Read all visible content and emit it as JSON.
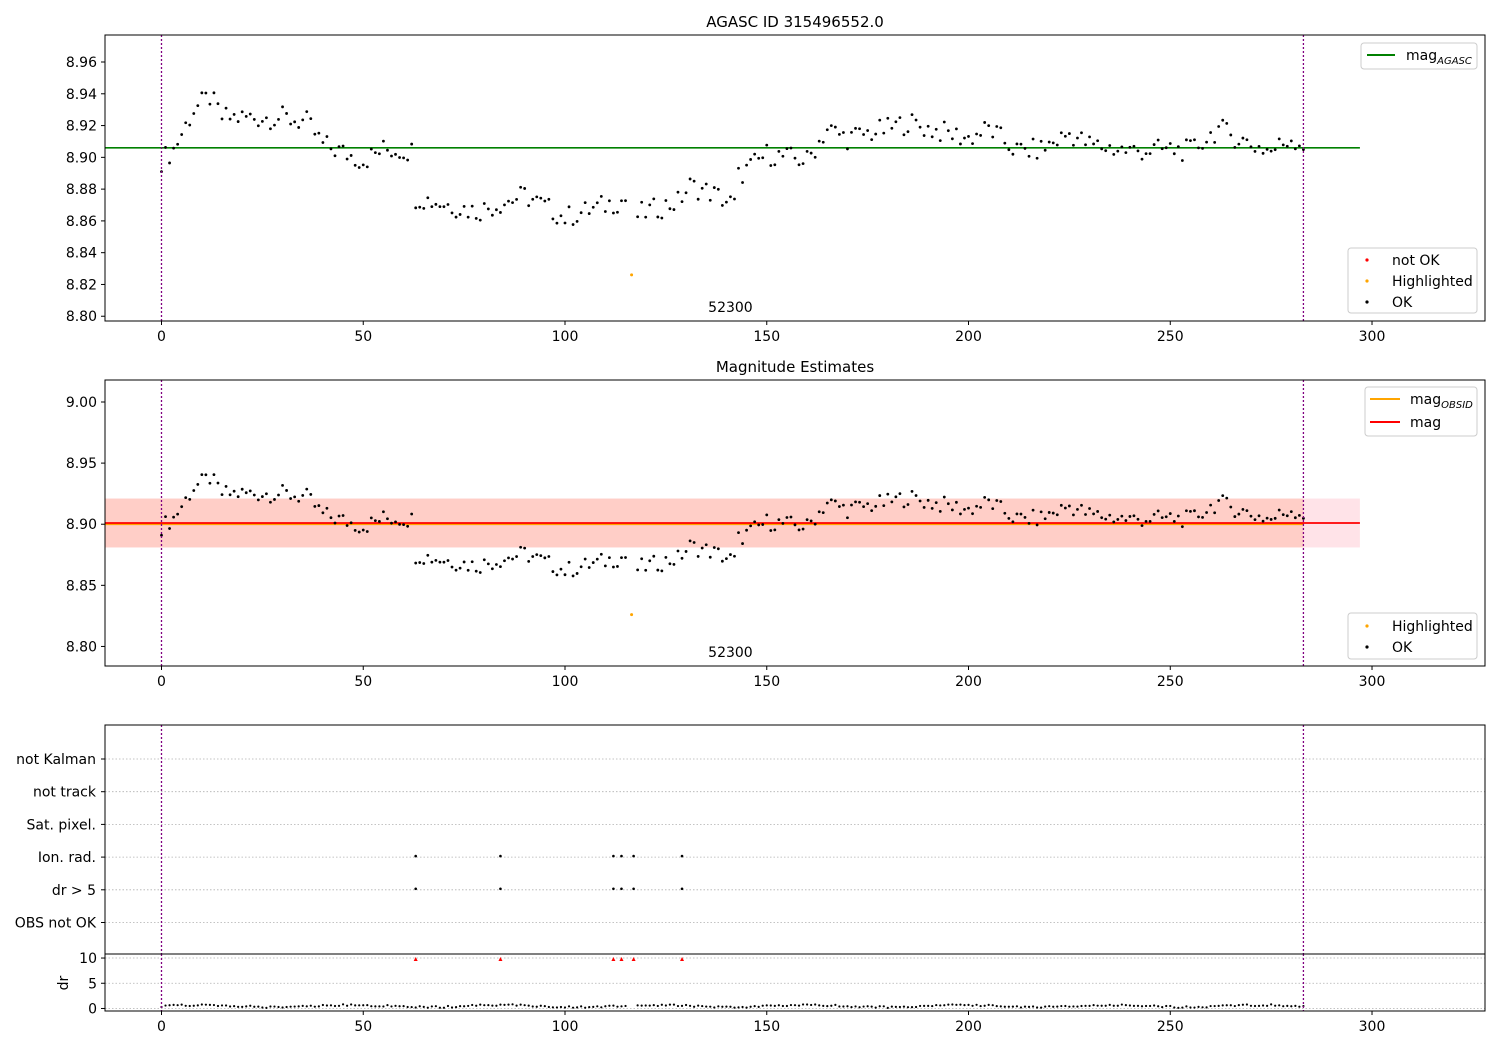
{
  "colors": {
    "ok": "#000000",
    "not_ok": "#ff0000",
    "highlighted": "#ffa500",
    "mag_agasc": "#008000",
    "mag_obsid": "#ffa500",
    "mag": "#ff0000",
    "band_fill": "#ffc0cb",
    "band_inner_fill": "#ffa07a",
    "vline": "#800080",
    "grid": "#b0b0b0"
  },
  "chart_data": [
    {
      "type": "scatter",
      "title": "AGASC ID 315496552.0",
      "annotation": "52300",
      "annotation_x": 141,
      "xlim": [
        -14,
        328
      ],
      "ylim": [
        8.797,
        8.977
      ],
      "xticks": [
        "0",
        "50",
        "100",
        "150",
        "200",
        "250",
        "300"
      ],
      "yticks": [
        "8.80",
        "8.82",
        "8.84",
        "8.86",
        "8.88",
        "8.90",
        "8.92",
        "8.94",
        "8.96"
      ],
      "hlines": [
        {
          "name": "mag_agasc",
          "y": 8.906,
          "xmin": -14,
          "xmax": 297,
          "color": "#008000"
        }
      ],
      "vlines": [
        0,
        283
      ],
      "highlighted_points": [
        {
          "x": 116.5,
          "y": 8.826
        }
      ],
      "legend_top": [
        {
          "name": "mag",
          "sub": "AGASC",
          "color": "#008000"
        }
      ],
      "legend_bottom": [
        {
          "name": "not OK",
          "color": "#ff0000"
        },
        {
          "name": "Highlighted",
          "color": "#ffa500"
        },
        {
          "name": "OK",
          "color": "#000000"
        }
      ]
    },
    {
      "type": "scatter",
      "title": "Magnitude Estimates",
      "annotation": "52300",
      "annotation_x": 141,
      "xlim": [
        -14,
        328
      ],
      "ylim": [
        8.784,
        9.018
      ],
      "xticks": [
        "0",
        "50",
        "100",
        "150",
        "200",
        "250",
        "300"
      ],
      "yticks": [
        "8.80",
        "8.85",
        "8.90",
        "8.95",
        "9.00"
      ],
      "bands": [
        {
          "ymin": 8.881,
          "ymax": 8.921,
          "xmin": -14,
          "xmax": 297,
          "color": "#ffc0cb",
          "opacity": 0.45
        },
        {
          "ymin": 8.881,
          "ymax": 8.921,
          "xmin": -14,
          "xmax": 283,
          "color": "#ffa07a",
          "opacity": 0.3
        }
      ],
      "hlines": [
        {
          "name": "mag_obsid",
          "y": 8.9,
          "xmin": -14,
          "xmax": 283,
          "color": "#ffa500"
        },
        {
          "name": "mag",
          "y": 8.901,
          "xmin": -14,
          "xmax": 297,
          "color": "#ff0000"
        }
      ],
      "vlines": [
        0,
        283
      ],
      "highlighted_points": [
        {
          "x": 116.5,
          "y": 8.826
        }
      ],
      "legend_top": [
        {
          "name": "mag",
          "sub": "OBSID",
          "color": "#ffa500"
        },
        {
          "name": "mag",
          "sub": "",
          "color": "#ff0000"
        }
      ],
      "legend_bottom": [
        {
          "name": "Highlighted",
          "color": "#ffa500"
        },
        {
          "name": "OK",
          "color": "#000000"
        }
      ]
    },
    {
      "type": "scatter",
      "title": "",
      "xlim": [
        -14,
        328
      ],
      "xticks": [
        "0",
        "50",
        "100",
        "150",
        "200",
        "250",
        "300"
      ],
      "flag_rows": [
        "not Kalman",
        "not track",
        "Sat. pixel.",
        "Ion. rad.",
        "dr > 5",
        "OBS not OK"
      ],
      "flag_points": {
        "Ion. rad.": [
          63,
          84,
          112,
          114,
          117,
          129
        ],
        "dr > 5": [
          63,
          84,
          112,
          114,
          117,
          129
        ]
      },
      "vlines": [
        0,
        283
      ],
      "dr": {
        "ylabel": "dr",
        "ylim": [
          -0.5,
          10.8
        ],
        "yticks": [
          "0",
          "5",
          "10"
        ],
        "clipped_points": [
          63,
          84,
          112,
          114,
          117,
          129
        ]
      }
    }
  ]
}
